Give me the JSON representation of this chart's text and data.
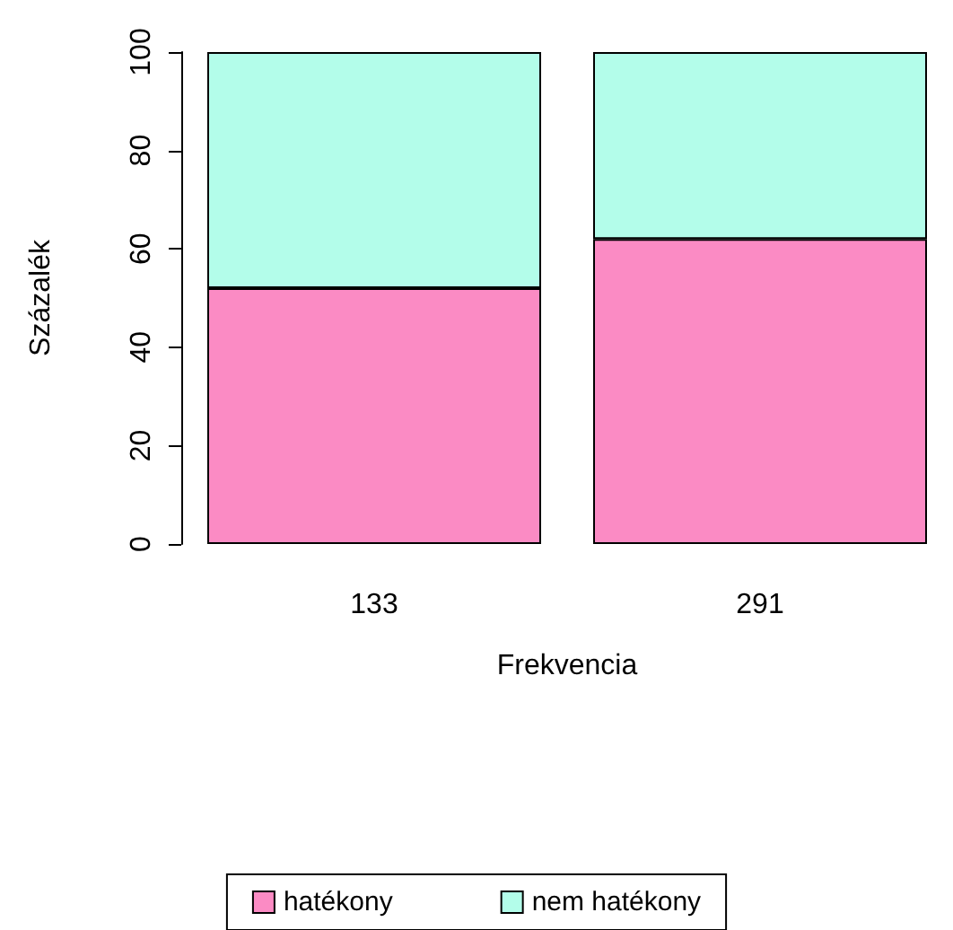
{
  "chart_data": {
    "type": "bar",
    "stacked": true,
    "xlabel": "Frekvencia",
    "ylabel": "Százalék",
    "categories": [
      "133",
      "291"
    ],
    "series": [
      {
        "name": "hatékony",
        "color": "#fb8bc4",
        "values": [
          52,
          62
        ]
      },
      {
        "name": "nem hatékony",
        "color": "#b3fdea",
        "values": [
          48,
          38
        ]
      }
    ],
    "ylim": [
      0,
      100
    ],
    "yticks": [
      0,
      20,
      40,
      60,
      80,
      100
    ],
    "grid": false,
    "legend": "bottom"
  }
}
